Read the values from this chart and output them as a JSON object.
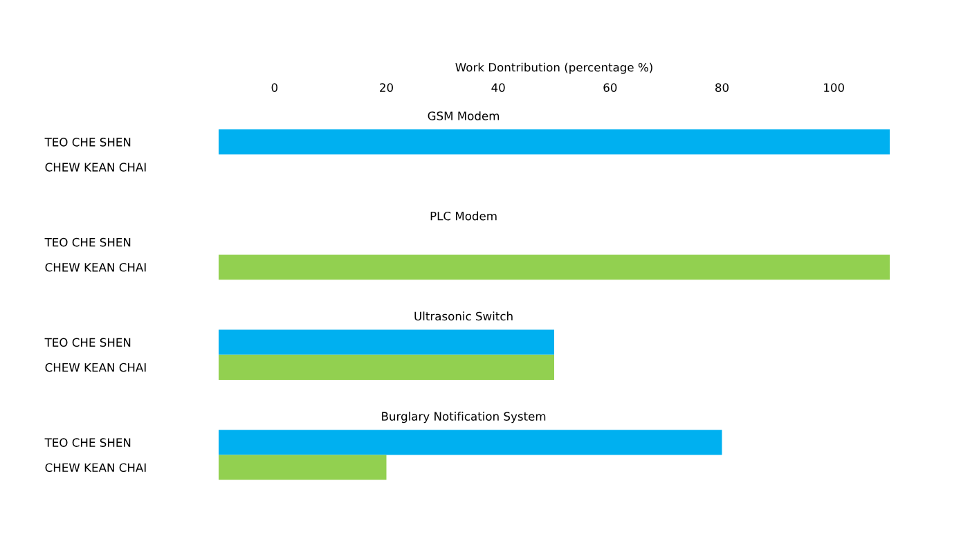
{
  "chart_data": {
    "type": "bar",
    "orientation": "horizontal",
    "xlabel": "Work Dontribution (percentage %)",
    "categories": [
      "TEO CHE SHEN",
      "CHEW KEAN CHAI",
      "TEO CHE SHEN",
      "CHEW KEAN CHAI",
      "TEO CHE SHEN",
      "CHEW KEAN CHAI",
      "TEO CHE SHEN",
      "CHEW KEAN CHAI"
    ],
    "values": [
      120,
      null,
      null,
      120,
      60,
      60,
      90,
      30
    ],
    "base": [
      -10,
      null,
      null,
      -10,
      -10,
      -10,
      -10,
      -10
    ],
    "colors": [
      "#00b0f0",
      "#92d050",
      "#00b0f0",
      "#92d050",
      "#00b0f0",
      "#92d050",
      "#00b0f0",
      "#92d050"
    ],
    "xlim": [
      -10,
      110
    ],
    "xticks": [
      0,
      20,
      40,
      60,
      80,
      100
    ],
    "annotations": [
      "GSM Modem",
      "PLC Modem",
      "Ultrasonic Switch",
      "Burglary Notification System"
    ],
    "grid": false,
    "legend": false
  }
}
